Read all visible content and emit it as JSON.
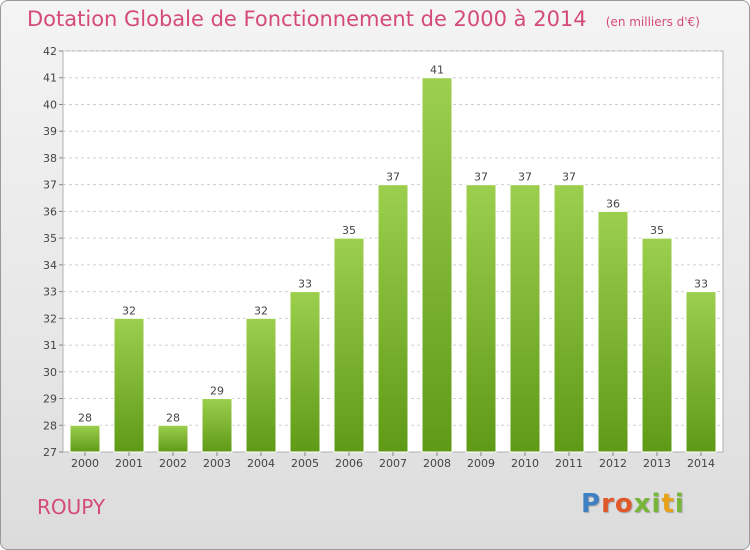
{
  "header": {
    "title": "Dotation Globale de Fonctionnement de 2000 à 2014",
    "unit": "(en milliers d'€)"
  },
  "footer": {
    "commune": "ROUPY",
    "logo_text": "Proxiti",
    "logo_colors": [
      "#3f7fc4",
      "#e0582a",
      "#e0582a",
      "#78b63a",
      "#78b63a",
      "#e8a21a",
      "#78b63a"
    ]
  },
  "chart_data": {
    "type": "bar",
    "categories": [
      "2000",
      "2001",
      "2002",
      "2003",
      "2004",
      "2005",
      "2006",
      "2007",
      "2008",
      "2009",
      "2010",
      "2011",
      "2012",
      "2013",
      "2014"
    ],
    "values": [
      28,
      32,
      28,
      29,
      32,
      33,
      35,
      37,
      41,
      37,
      37,
      37,
      36,
      35,
      33
    ],
    "ylim": [
      27,
      42
    ],
    "yticks": [
      27,
      28,
      29,
      30,
      31,
      32,
      33,
      34,
      35,
      36,
      37,
      38,
      39,
      40,
      41,
      42
    ],
    "grid": "horizontal dashed",
    "colors": {
      "bar_top": "#9ccf4e",
      "bar_bottom": "#5f9a17",
      "label": "#444444"
    }
  }
}
